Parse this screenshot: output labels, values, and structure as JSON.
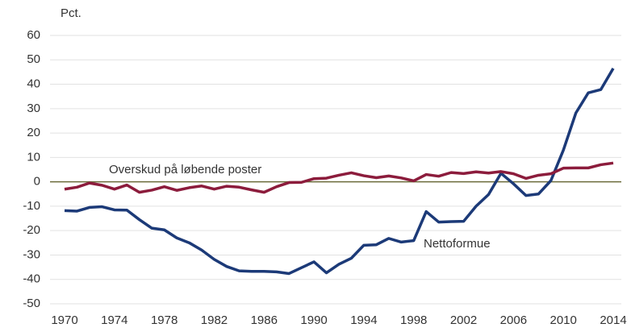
{
  "chart_data": {
    "type": "line",
    "ylabel": "Pct.",
    "x": [
      1970,
      1971,
      1972,
      1973,
      1974,
      1975,
      1976,
      1977,
      1978,
      1979,
      1980,
      1981,
      1982,
      1983,
      1984,
      1985,
      1986,
      1987,
      1988,
      1989,
      1990,
      1991,
      1992,
      1993,
      1994,
      1995,
      1996,
      1997,
      1998,
      1999,
      2000,
      2001,
      2002,
      2003,
      2004,
      2005,
      2006,
      2007,
      2008,
      2009,
      2010,
      2011,
      2012,
      2013,
      2014
    ],
    "series": [
      {
        "name": "Nettoformue",
        "color": "#1c3a78",
        "values": [
          -11.8,
          -12,
          -10.5,
          -10.2,
          -11.5,
          -11.6,
          -15.5,
          -19,
          -19.7,
          -23,
          -25,
          -28,
          -31.8,
          -34.7,
          -36.5,
          -36.7,
          -36.7,
          -36.9,
          -37.6,
          -35.2,
          -32.8,
          -37.3,
          -33.8,
          -31.3,
          -26,
          -25.8,
          -23.2,
          -24.7,
          -24.1,
          -12.2,
          -16.5,
          -16.3,
          -16.2,
          -10,
          -5.2,
          3.5,
          -0.8,
          -5.6,
          -5,
          0.5,
          13,
          28.2,
          36.5,
          37.8,
          46.5
        ]
      },
      {
        "name": "Overskud på løbende poster",
        "color": "#8c1c3c",
        "values": [
          -3,
          -2.2,
          -0.5,
          -1.4,
          -3,
          -1.3,
          -4.3,
          -3.4,
          -2,
          -3.5,
          -2.4,
          -1.7,
          -3,
          -1.8,
          -2.2,
          -3.3,
          -4.3,
          -2,
          -0.3,
          -0.2,
          1.3,
          1.5,
          2.7,
          3.7,
          2.5,
          1.7,
          2.4,
          1.6,
          0.4,
          3,
          2.3,
          3.8,
          3.4,
          4.1,
          3.6,
          4.2,
          3.3,
          1.4,
          2.7,
          3.3,
          5.6,
          5.7,
          5.7,
          7,
          7.7
        ]
      }
    ],
    "xlim": [
      1970,
      2014
    ],
    "xticks": [
      1970,
      1974,
      1978,
      1982,
      1986,
      1990,
      1994,
      1998,
      2002,
      2006,
      2010,
      2014
    ],
    "ylim": [
      -50,
      60
    ],
    "yticks": [
      -50,
      -40,
      -30,
      -20,
      -10,
      0,
      10,
      20,
      30,
      40,
      50,
      60
    ],
    "grid": true
  }
}
